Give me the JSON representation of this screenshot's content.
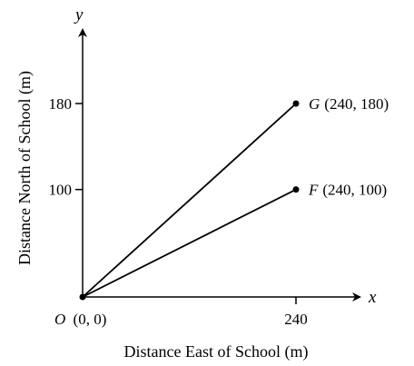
{
  "chart_data": {
    "type": "line",
    "xlabel": "Distance East of School (m)",
    "ylabel": "Distance North of School (m)",
    "x_axis_letter": "x",
    "y_axis_letter": "y",
    "xlim": [
      0,
      300
    ],
    "ylim": [
      0,
      260
    ],
    "grid": false,
    "x_ticks": [
      240
    ],
    "y_ticks": [
      100,
      180
    ],
    "origin": {
      "name": "O",
      "coords": "(0, 0)",
      "x": 0,
      "y": 0
    },
    "points": [
      {
        "name": "G",
        "coords": "(240, 180)",
        "x": 240,
        "y": 180
      },
      {
        "name": "F",
        "coords": "(240, 100)",
        "x": 240,
        "y": 100
      }
    ],
    "line_color": "#000000"
  }
}
